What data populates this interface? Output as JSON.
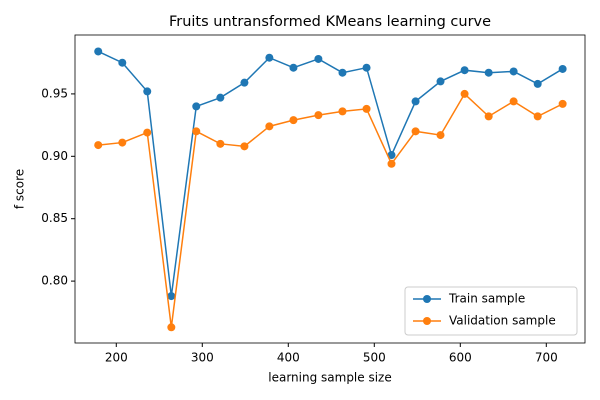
{
  "chart_data": {
    "type": "line",
    "title": "Fruits untransformed KMeans learning curve",
    "x_label": "learning sample size",
    "y_label": "f score",
    "x": [
      179,
      207,
      236,
      264,
      293,
      321,
      349,
      378,
      406,
      435,
      463,
      491,
      520,
      548,
      577,
      605,
      633,
      662,
      690,
      719
    ],
    "series": [
      {
        "name": "Train sample",
        "color": "#1f77b4",
        "values": [
          0.984,
          0.975,
          0.952,
          0.788,
          0.94,
          0.947,
          0.959,
          0.979,
          0.971,
          0.978,
          0.967,
          0.971,
          0.901,
          0.944,
          0.96,
          0.969,
          0.967,
          0.968,
          0.958,
          0.97
        ]
      },
      {
        "name": "Validation sample",
        "color": "#ff7f0e",
        "values": [
          0.909,
          0.911,
          0.919,
          0.763,
          0.92,
          0.91,
          0.908,
          0.924,
          0.929,
          0.933,
          0.936,
          0.938,
          0.894,
          0.92,
          0.917,
          0.95,
          0.932,
          0.944,
          0.932,
          0.942
        ]
      }
    ],
    "xlim": [
      152,
      745
    ],
    "xticks": [
      200,
      300,
      400,
      500,
      600,
      700
    ],
    "ylim": [
      0.7504,
      0.9972
    ],
    "yticks": [
      {
        "value": 0.8,
        "label": "0.80"
      },
      {
        "value": 0.85,
        "label": "0.85"
      },
      {
        "value": 0.9,
        "label": "0.90"
      },
      {
        "value": 0.95,
        "label": "0.95"
      }
    ],
    "legend": "lower right"
  }
}
